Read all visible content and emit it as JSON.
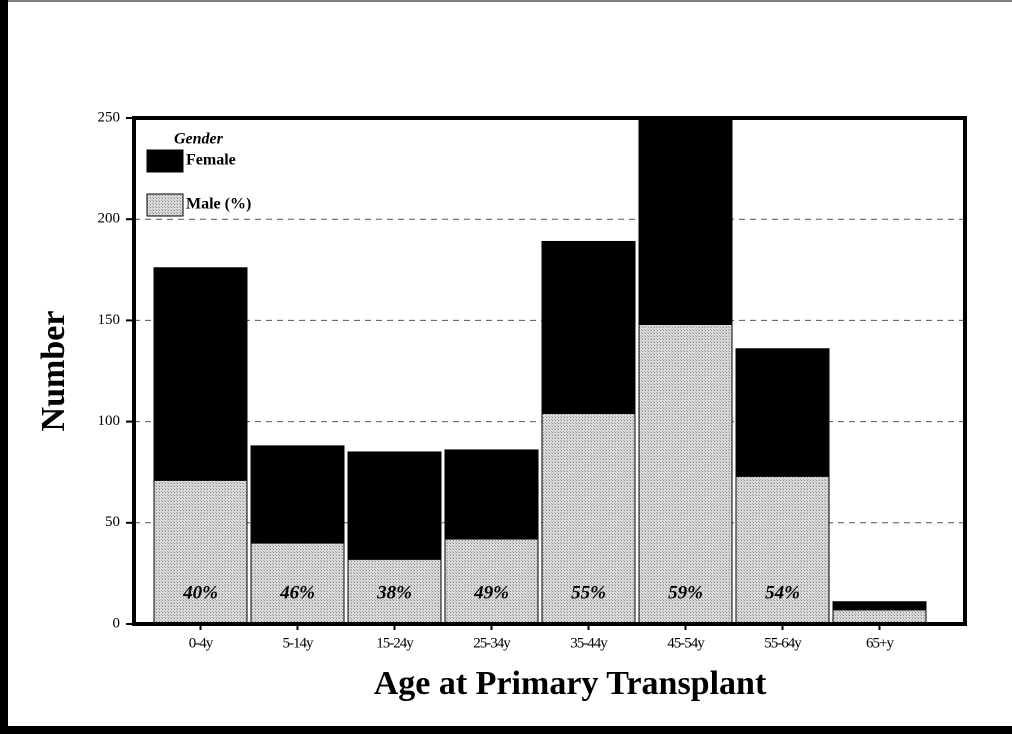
{
  "chart_data": {
    "type": "stacked_bar",
    "xlabel": "Age at Primary Transplant",
    "ylabel": "Number",
    "categories": [
      "0-4y",
      "5-14y",
      "15-24y",
      "25-34y",
      "35-44y",
      "45-54y",
      "55-64y",
      "65+y"
    ],
    "series": [
      {
        "name": "Male (%)",
        "color": "#c8c8c8",
        "values": [
          71,
          40,
          32,
          42,
          104,
          148,
          73,
          7
        ]
      },
      {
        "name": "Female",
        "color": "#000000",
        "values": [
          105,
          48,
          53,
          44,
          85,
          102,
          63,
          4
        ]
      }
    ],
    "male_percent": [
      {
        "value": 40,
        "label": "40%"
      },
      {
        "value": 46,
        "label": "46%"
      },
      {
        "value": 38,
        "label": "38%"
      },
      {
        "value": 49,
        "label": "49%"
      },
      {
        "value": 55,
        "label": "55%"
      },
      {
        "value": 59,
        "label": "59%"
      },
      {
        "value": 54,
        "label": "54%"
      },
      null
    ],
    "legend_title": "Gender",
    "legend": "top-left",
    "ylim": [
      0,
      250
    ],
    "yticks": [
      0,
      50,
      100,
      150,
      200,
      250
    ],
    "grid": true
  }
}
